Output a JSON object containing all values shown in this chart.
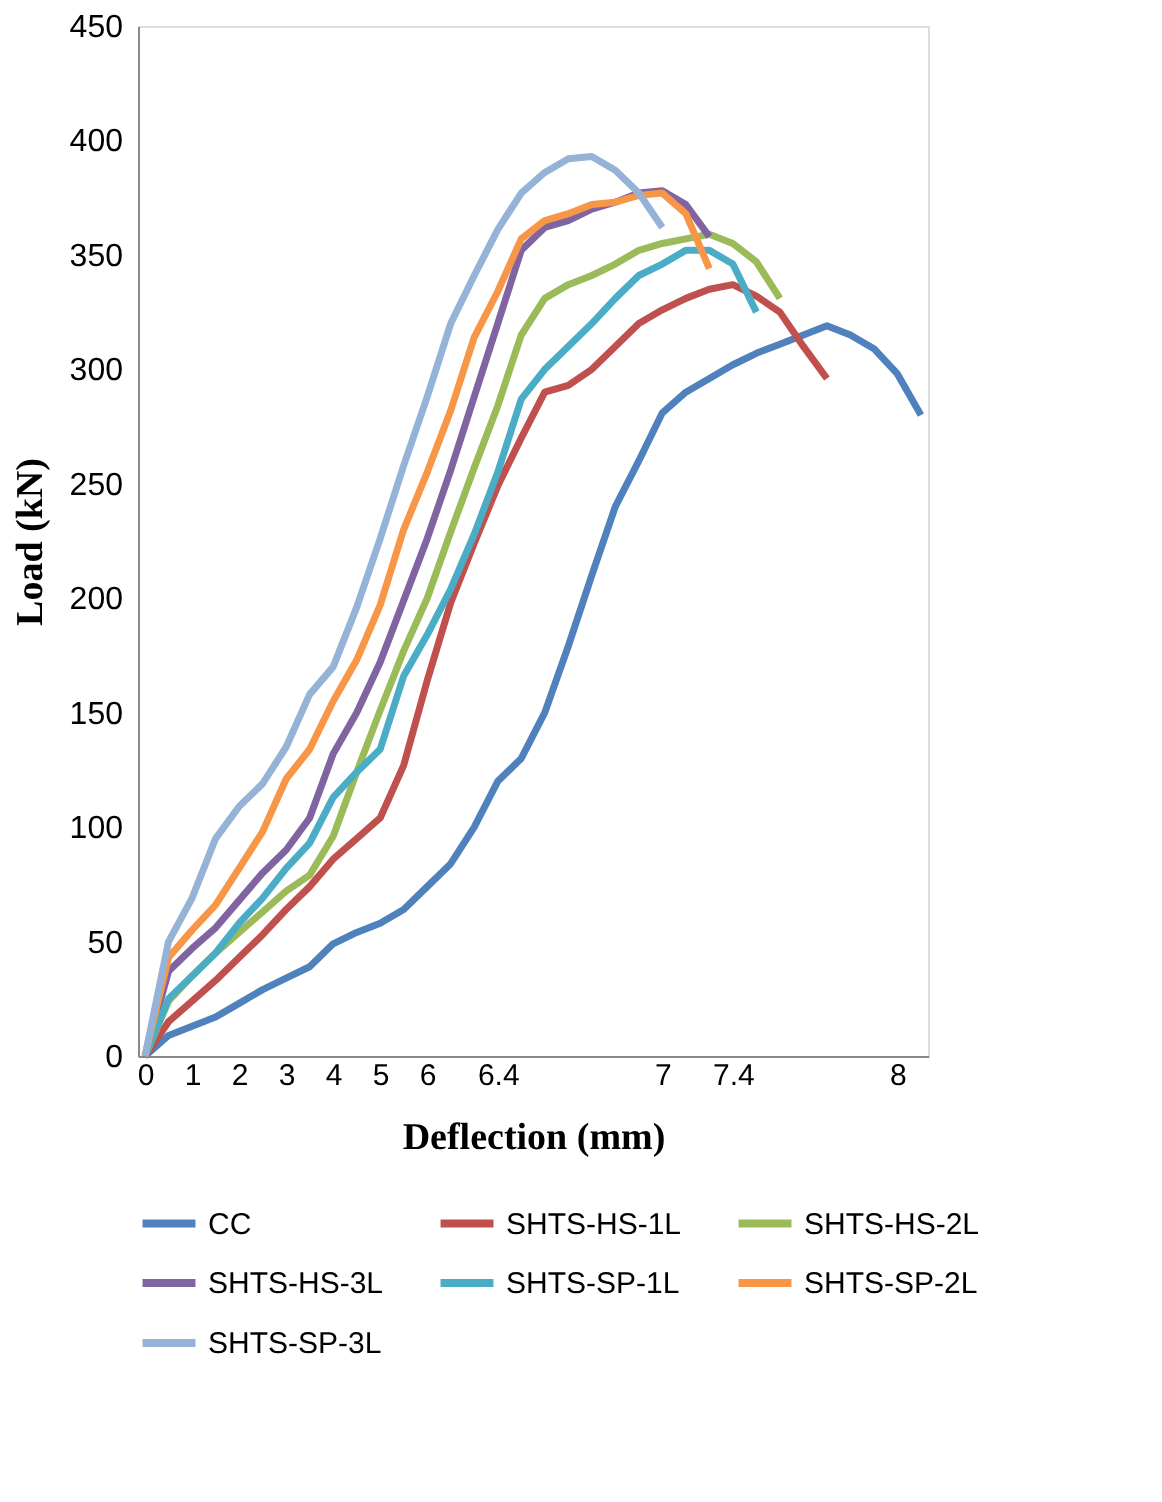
{
  "chart_data": {
    "type": "line",
    "xlabel": "Deflection (mm)",
    "ylabel": "Load (kN)",
    "categories": [
      "0",
      null,
      "1",
      null,
      "2",
      null,
      "3",
      null,
      "4",
      null,
      "5",
      null,
      "6",
      null,
      null,
      "6.4",
      null,
      null,
      null,
      null,
      null,
      null,
      "7",
      null,
      null,
      "7.4",
      null,
      null,
      null,
      null,
      null,
      null,
      "8",
      null
    ],
    "ylim": [
      0,
      450
    ],
    "yticks": [
      0,
      50,
      100,
      150,
      200,
      250,
      300,
      350,
      400,
      450
    ],
    "grid": false,
    "legend": "bottom",
    "marker": "none",
    "line_style": "solid",
    "series": [
      {
        "name": "CC",
        "color": "#4f81bd",
        "values": [
          0,
          9,
          13,
          17,
          23,
          29,
          34,
          39,
          49,
          54,
          58,
          64,
          74,
          84,
          100,
          120,
          130,
          150,
          179,
          210,
          240,
          260,
          281,
          290,
          296,
          302,
          307,
          311,
          315,
          319,
          315,
          309,
          298,
          280
        ]
      },
      {
        "name": "SHTS-HS-1L",
        "color": "#c0504d",
        "values": [
          0,
          15,
          24,
          33,
          43,
          53,
          64,
          74,
          86,
          95,
          104,
          127,
          164,
          198,
          224,
          249,
          270,
          290,
          293,
          300,
          310,
          320,
          326,
          331,
          335,
          337,
          332,
          325,
          310,
          296,
          null,
          null,
          null,
          null
        ]
      },
      {
        "name": "SHTS-HS-2L",
        "color": "#9bbb59",
        "values": [
          0,
          24,
          35,
          45,
          54,
          63,
          72,
          79,
          96,
          124,
          151,
          177,
          200,
          229,
          257,
          284,
          315,
          331,
          337,
          341,
          346,
          352,
          355,
          357,
          359,
          355,
          347,
          331,
          null,
          null,
          null,
          null,
          null,
          null
        ]
      },
      {
        "name": "SHTS-HS-3L",
        "color": "#8064a2",
        "values": [
          0,
          37,
          47,
          56,
          68,
          80,
          90,
          104,
          132,
          150,
          172,
          199,
          226,
          256,
          288,
          320,
          352,
          362,
          365,
          370,
          373,
          377,
          378,
          372,
          358,
          null,
          null,
          null,
          null,
          null,
          null,
          null,
          null,
          null
        ]
      },
      {
        "name": "SHTS-SP-1L",
        "color": "#4bacc6",
        "values": [
          0,
          25,
          35,
          45,
          58,
          69,
          82,
          93,
          113,
          124,
          134,
          166,
          184,
          204,
          228,
          255,
          287,
          300,
          310,
          320,
          331,
          341,
          346,
          352,
          352,
          346,
          325,
          null,
          null,
          null,
          null,
          null,
          null,
          null
        ]
      },
      {
        "name": "SHTS-SP-2L",
        "color": "#f79646",
        "values": [
          0,
          43,
          55,
          66,
          82,
          98,
          121,
          134,
          155,
          173,
          197,
          230,
          255,
          282,
          314,
          334,
          357,
          365,
          368,
          372,
          373,
          376,
          377,
          368,
          344,
          null,
          null,
          null,
          null,
          null,
          null,
          null,
          null,
          null
        ]
      },
      {
        "name": "SHTS-SP-3L",
        "color": "#95b3d7",
        "values": [
          0,
          50,
          69,
          95,
          109,
          119,
          135,
          158,
          170,
          196,
          226,
          258,
          288,
          320,
          341,
          361,
          377,
          386,
          392,
          393,
          387,
          377,
          362,
          null,
          null,
          null,
          null,
          null,
          null,
          null,
          null,
          null,
          null,
          null
        ]
      }
    ]
  }
}
